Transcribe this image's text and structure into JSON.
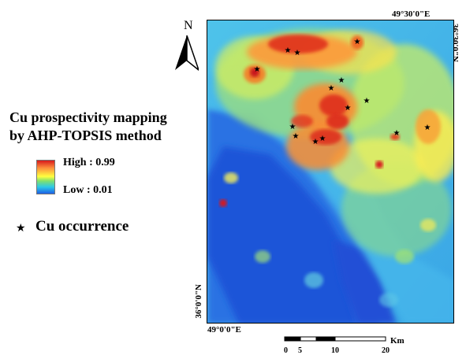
{
  "legend": {
    "title_line1": "Cu prospectivity mapping",
    "title_line2": "by AHP-TOPSIS method",
    "high_label": "High : 0.99",
    "low_label": "Low : 0.01",
    "occurrence_symbol": "★",
    "occurrence_label": "Cu occurrence"
  },
  "north_label": "N",
  "coords": {
    "top_right": "49°30'0\"E",
    "right_vertical": "36°30'0\"N",
    "left_vertical": "36°0'0\"N",
    "bottom_left": "49°0'0\"E"
  },
  "scale_bar": {
    "ticks": [
      "0",
      "5",
      "10",
      "20"
    ],
    "unit": "Km"
  },
  "colors": {
    "high": "#d7191c",
    "mid_high": "#fd8d3c",
    "mid": "#ffff3f",
    "mid_low": "#7fe06e",
    "low_mid": "#2cc8e8",
    "low": "#1e5fe6"
  }
}
